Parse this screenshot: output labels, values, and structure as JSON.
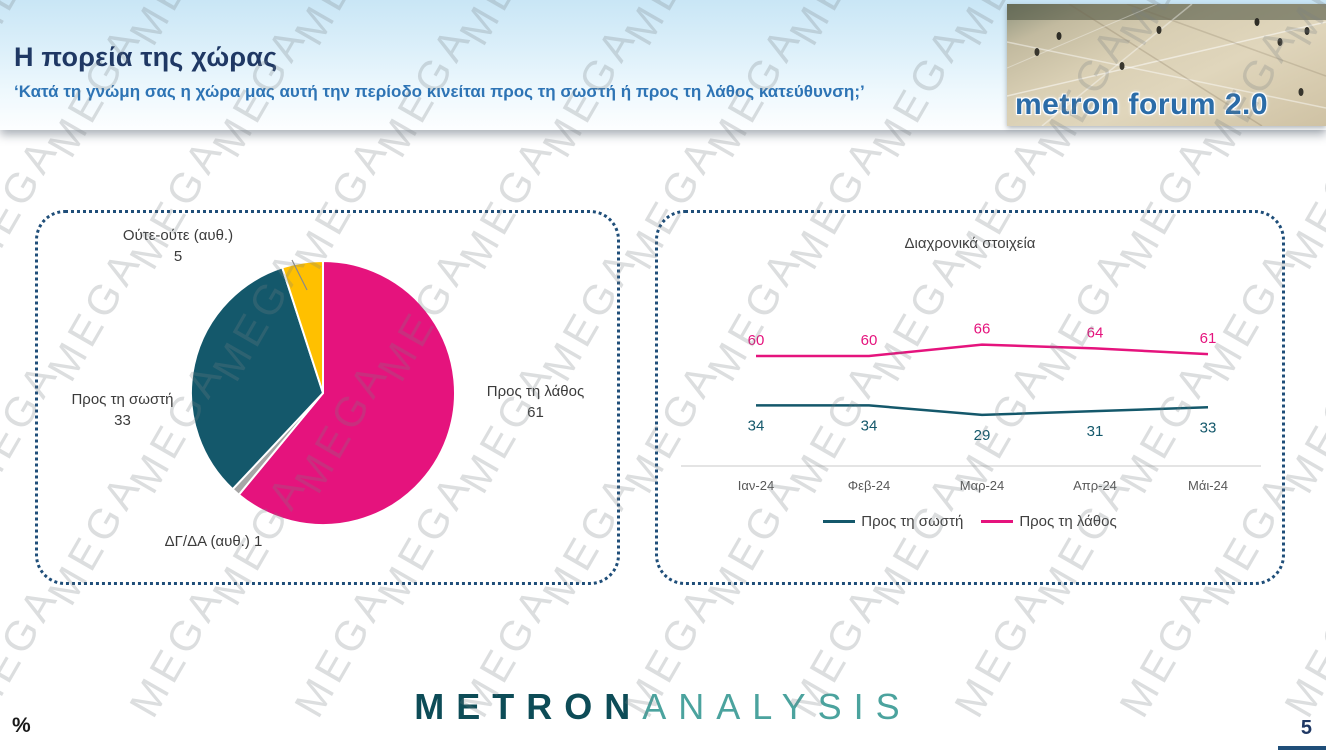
{
  "header": {
    "title": "Η πορεία της χώρας",
    "subtitle": "‘Κατά τη γνώμη σας η χώρα μας αυτή την περίοδο κινείται προς τη σωστή ή προς τη λάθος κατεύθυνση;’",
    "brand": "metron forum 2.0"
  },
  "watermark": {
    "text": "MEGA"
  },
  "footer": {
    "logo_primary": "METRON",
    "logo_secondary": "ANALYSIS",
    "percent_symbol": "%",
    "page_number": "5"
  },
  "colors": {
    "title": "#1F3864",
    "subtitle": "#2E74B5",
    "panel_border": "#1F4E79",
    "pink": "#E5137D",
    "teal": "#14586B",
    "yellow": "#FFC000",
    "gray": "#A6A6A6",
    "logo_primary": "#0D4C57",
    "logo_secondary": "#4BA39E"
  },
  "chart_data": [
    {
      "type": "pie",
      "title": "",
      "slices": [
        {
          "label": "Προς τη λάθος",
          "value": 61,
          "color": "#E5137D"
        },
        {
          "label": "ΔΓ/ΔΑ (αυθ.)",
          "value": 1,
          "color": "#A6A6A6"
        },
        {
          "label": "Προς τη σωστή",
          "value": 33,
          "color": "#14586B"
        },
        {
          "label": "Ούτε-ούτε (αυθ.)",
          "value": 5,
          "color": "#FFC000"
        }
      ]
    },
    {
      "type": "line",
      "title": "Διαχρονικά στοιχεία",
      "categories": [
        "Ιαν-24",
        "Φεβ-24",
        "Μαρ-24",
        "Απρ-24",
        "Μάι-24"
      ],
      "series": [
        {
          "name": "Προς τη σωστή",
          "values": [
            34,
            34,
            29,
            31,
            33
          ],
          "color": "#14586B"
        },
        {
          "name": "Προς τη λάθος",
          "values": [
            60,
            60,
            66,
            64,
            61
          ],
          "color": "#E5137D"
        }
      ],
      "ylim": [
        0,
        100
      ],
      "grid": false,
      "legend_position": "bottom"
    }
  ]
}
